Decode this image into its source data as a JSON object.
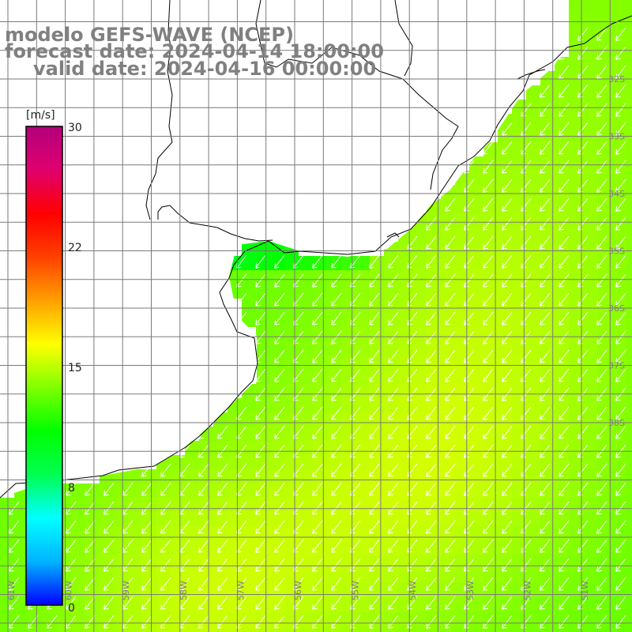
{
  "title": {
    "model": "modelo GEFS-WAVE (NCEP)",
    "forecast": "forecast date: 2024-04-14 18:00:00",
    "valid": "valid date: 2024-04-16 00:00:00"
  },
  "colorbar": {
    "unit": "[m/s]",
    "ticks": [
      "30",
      "22",
      "15",
      "8",
      "0"
    ],
    "range": [
      0,
      30
    ],
    "colors": [
      "#0000ff",
      "#00b4ff",
      "#00ffff",
      "#00ff50",
      "#00ff00",
      "#80ff00",
      "#ffff00",
      "#ffa000",
      "#ff4000",
      "#ff0000",
      "#e0006e",
      "#b4007c"
    ]
  },
  "map": {
    "lat_labels": [
      "32S",
      "33S",
      "34S",
      "35S",
      "36S",
      "37S",
      "38S"
    ],
    "lon_labels": [
      "61W",
      "60W",
      "59W",
      "58W",
      "57W",
      "56W",
      "55W",
      "54W",
      "53W",
      "52W",
      "51W"
    ],
    "lat_range": [
      31.25,
      39.5
    ],
    "lon_range": [
      61.3,
      50.3
    ],
    "land_color": "#ffffff",
    "coast_color": "#000000",
    "grid_color": "#7a7a7a",
    "arrow_color": "#ffffff",
    "wind_direction": "from NE (arrows point SW)",
    "speed_range_shown_m_s": [
      8,
      17
    ]
  }
}
